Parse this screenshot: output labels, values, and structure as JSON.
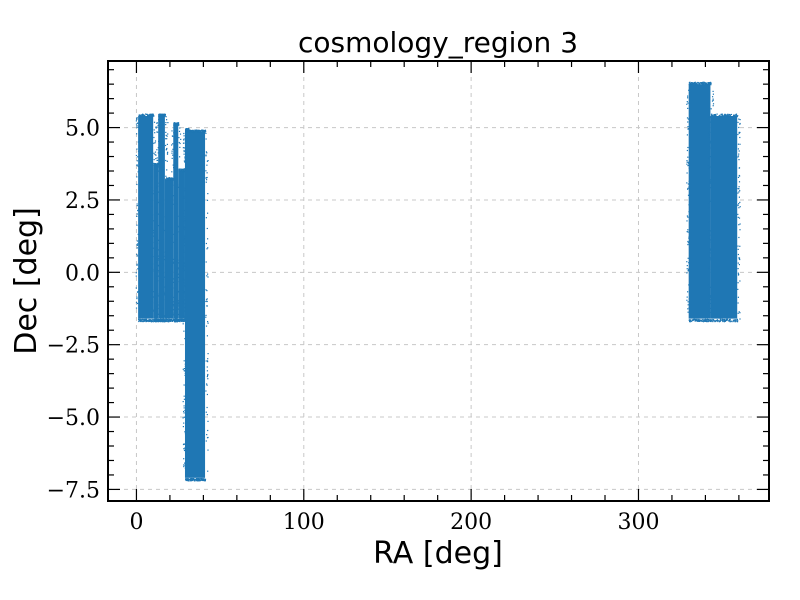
{
  "chart_data": {
    "type": "scatter",
    "title": "cosmology_region 3",
    "xlabel": "RA [deg]",
    "ylabel": "Dec [deg]",
    "xlim": [
      -17,
      378
    ],
    "ylim": [
      -7.9,
      7.3
    ],
    "xticks": [
      0,
      100,
      200,
      300
    ],
    "xtick_labels": [
      "0",
      "100",
      "200",
      "300"
    ],
    "yticks": [
      -7.5,
      -5.0,
      -2.5,
      0.0,
      2.5,
      5.0
    ],
    "ytick_labels": [
      "−7.5",
      "−5.0",
      "−2.5",
      "0.0",
      "2.5",
      "5.0"
    ],
    "grid": true,
    "marker_color": "#1f77b4",
    "regions": [
      {
        "ra_min": 1,
        "ra_max": 10,
        "dec_min": -1.6,
        "dec_max": 5.4
      },
      {
        "ra_min": 10,
        "ra_max": 13,
        "dec_min": -1.6,
        "dec_max": 3.7
      },
      {
        "ra_min": 13,
        "ra_max": 17,
        "dec_min": -1.6,
        "dec_max": 5.4
      },
      {
        "ra_min": 17,
        "ra_max": 22,
        "dec_min": -1.6,
        "dec_max": 3.2
      },
      {
        "ra_min": 22,
        "ra_max": 25,
        "dec_min": -1.6,
        "dec_max": 5.1
      },
      {
        "ra_min": 25,
        "ra_max": 29,
        "dec_min": -1.6,
        "dec_max": 3.5
      },
      {
        "ra_min": 29,
        "ra_max": 31,
        "dec_min": -1.6,
        "dec_max": 4.9
      },
      {
        "ra_min": 29,
        "ra_max": 41,
        "dec_min": -7.1,
        "dec_max": 4.85
      },
      {
        "ra_min": 330,
        "ra_max": 343,
        "dec_min": -1.6,
        "dec_max": 6.5
      },
      {
        "ra_min": 343,
        "ra_max": 359,
        "dec_min": -1.6,
        "dec_max": 5.4
      }
    ]
  }
}
